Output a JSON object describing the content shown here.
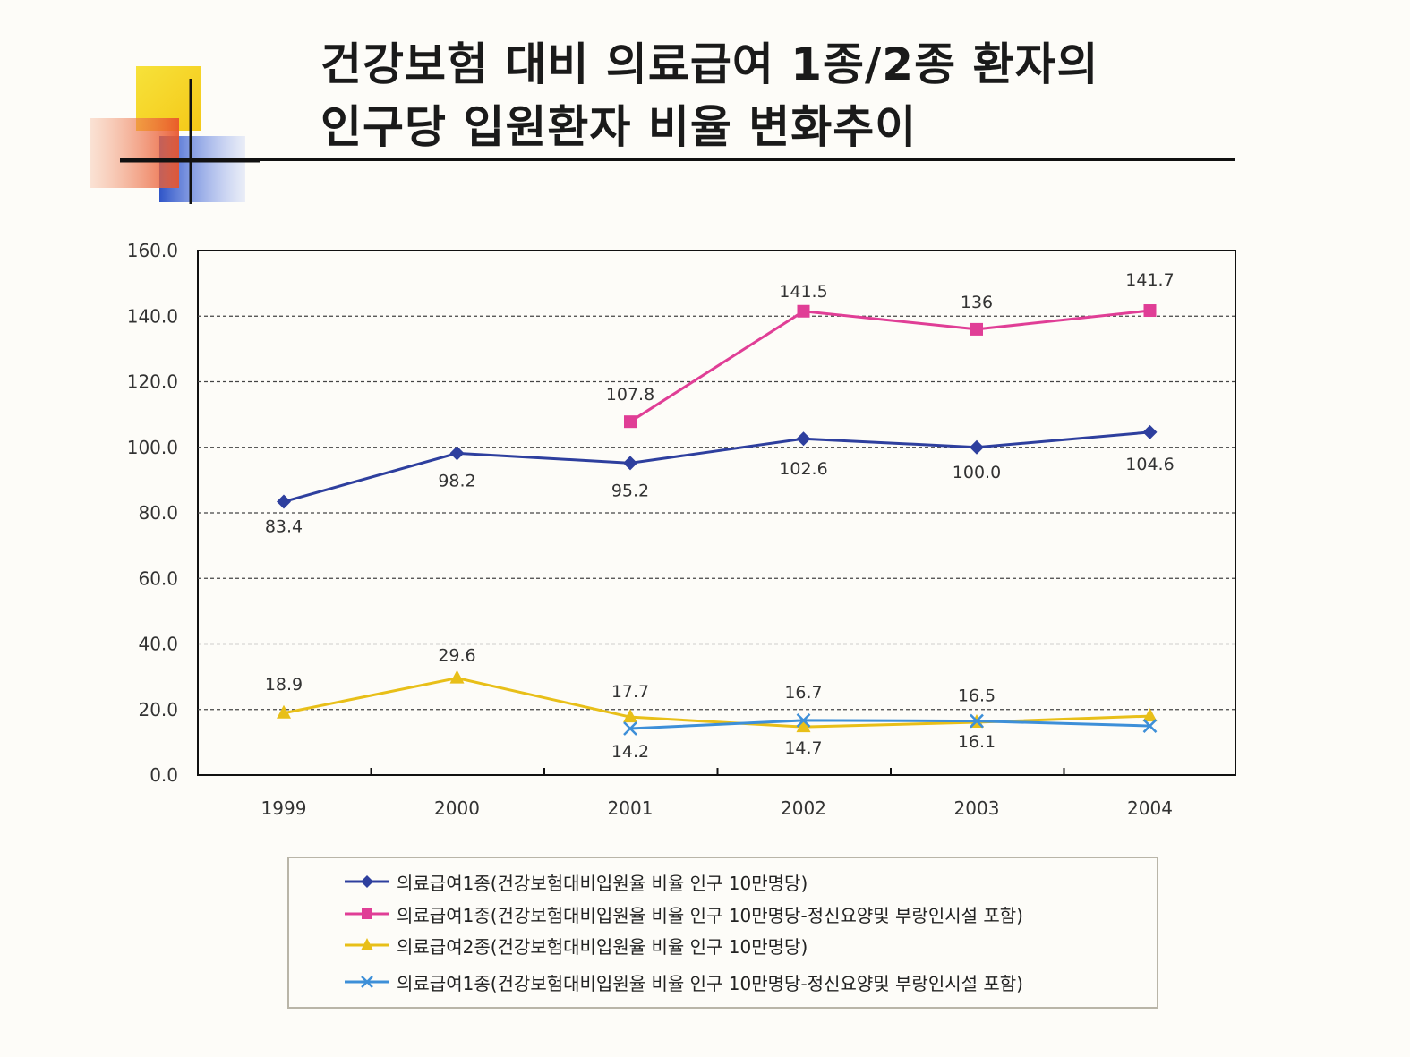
{
  "title": {
    "line1": "건강보험 대비 의료급여 1종/2종 환자의",
    "line2": "인구당 입원환자 비율 변화추이"
  },
  "chart_data": {
    "type": "line",
    "categories": [
      "1999",
      "2000",
      "2001",
      "2002",
      "2003",
      "2004"
    ],
    "ylim": [
      0,
      160
    ],
    "yticks": [
      "0.0",
      "20.0",
      "40.0",
      "60.0",
      "80.0",
      "100.0",
      "120.0",
      "140.0",
      "160.0"
    ],
    "grid": true,
    "legend_position": "bottom",
    "series": [
      {
        "name": "의료급여1종(건강보험대비입원율 비율 인구 10만명당)",
        "color": "#2e3f9e",
        "marker": "diamond",
        "values": [
          83.4,
          98.2,
          95.2,
          102.6,
          100.0,
          104.6
        ],
        "labels": [
          "83.4",
          "98.2",
          "95.2",
          "102.6",
          "100.0",
          "104.6"
        ],
        "label_position": "below"
      },
      {
        "name": "의료급여1종(건강보험대비입원율 비율 인구 10만명당-정신요양및 부랑인시설 포함)",
        "color": "#e03e96",
        "marker": "square",
        "values": [
          null,
          null,
          107.8,
          141.5,
          136,
          141.7
        ],
        "labels": [
          null,
          null,
          "107.8",
          "141.5",
          "136",
          "141.7"
        ],
        "label_position": "above"
      },
      {
        "name": "의료급여2종(건강보험대비입원율 비율 인구 10만명당)",
        "color": "#e8bf18",
        "marker": "triangle",
        "values": [
          18.9,
          29.6,
          17.7,
          14.7,
          16.1,
          18.0
        ],
        "labels": [
          "18.9",
          "29.6",
          "17.7",
          "14.7",
          "16.1",
          null
        ],
        "label_position": "mixed"
      },
      {
        "name": "의료급여1종(건강보험대비입원율 비율 인구 10만명당-정신요양및 부랑인시설 포함)",
        "color": "#3d8fd8",
        "marker": "x",
        "values": [
          null,
          null,
          14.2,
          16.7,
          16.5,
          15.0
        ],
        "labels": [
          null,
          null,
          "14.2",
          "16.7",
          "16.5",
          null
        ],
        "label_position": "mixed"
      }
    ]
  }
}
